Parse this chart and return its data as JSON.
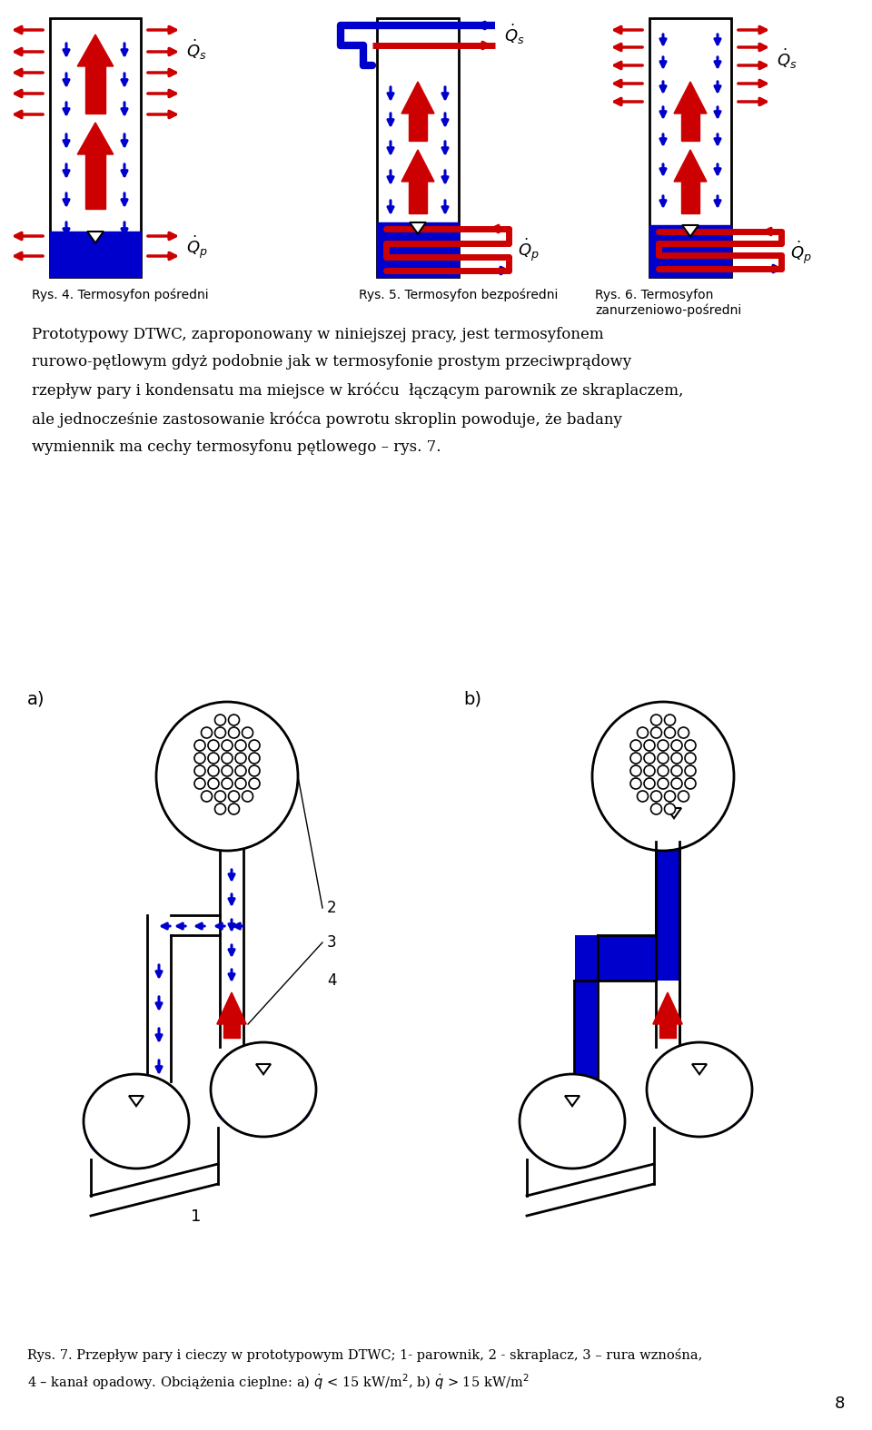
{
  "background_color": "#ffffff",
  "text_paragraph": "Prototypowy DTWC, zaproponowany w niniejszej pracy, jest termosyfonem\nrurowo-pętlowym gdyż podobnie jak w termosyfonie prostym przeciwprądowy\nrzepływ pary i kondensatu ma miejsce w króćcu  łączącym parownik ze skraplaczem,\nale jednocześnie zastosowanie króćca powrotu skroplin powoduje, że badany\nwymiennik ma cechy termosyfonu pętlowego – rys. 7.",
  "caption_rys4": "Rys. 4. Termosyfon pośredni",
  "caption_rys5": "Rys. 5. Termosyfon bezpośredni",
  "caption_rys6": "Rys. 6. Termosyfon\nzanurzeniowo-pośredni",
  "caption_bottom": "Rys. 7. Przepływ pary i cieczy w prototypowym DTWC; 1- parownik, 2 - skraplacz, 3 – rura wznośna,\n4 – kanał opadowy. Obciążenia cieplne: a) $\\dot{q}$ < 15 kW/m$^2$, b) $\\dot{q}$ > 15 kW/m$^2$",
  "label_a": "a)",
  "label_b": "b)",
  "label_2": "2",
  "label_3": "3",
  "label_4": "4",
  "label_1": "1",
  "page_number": "8",
  "blue": "#0000cc",
  "red": "#cc0000"
}
